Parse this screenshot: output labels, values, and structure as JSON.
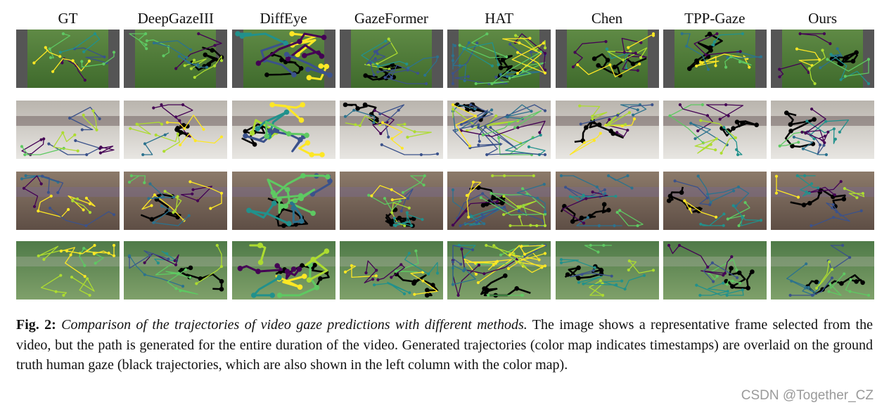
{
  "figure": {
    "columns": [
      "GT",
      "DeepGazeIII",
      "DiffEye",
      "GazeFormer",
      "HAT",
      "Chen",
      "TPP-Gaze",
      "Ours"
    ],
    "caption": {
      "label": "Fig. 2:",
      "title": "Comparison of the trajectories of video gaze predictions with different methods.",
      "text": "The image shows a representative frame selected from the video, but the path is generated for the entire duration of the video. Generated trajectories (color map indicates timestamps) are overlaid on the ground truth human gaze (black trajectories, which are also shown in the left column with the color map)."
    }
  },
  "watermark": "CSDN @Together_CZ"
}
